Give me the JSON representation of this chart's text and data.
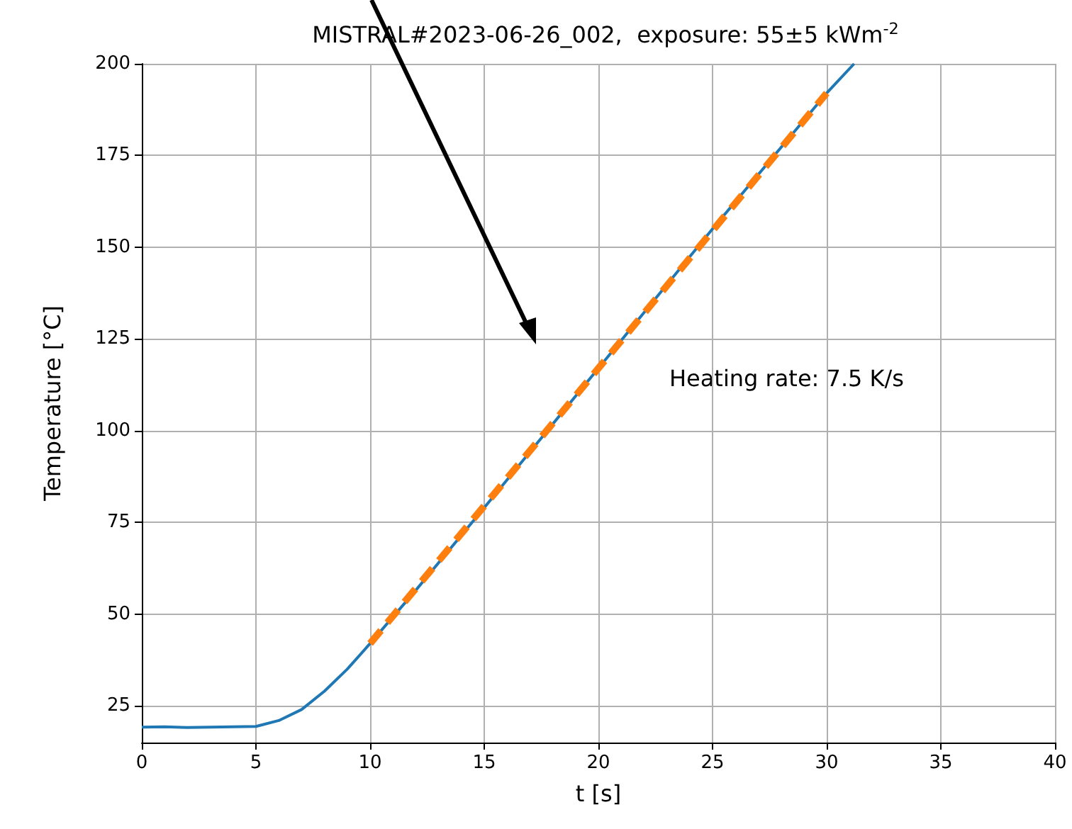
{
  "chart_data": {
    "type": "line",
    "title": "MISTRAL#2023-06-26_002,  exposure: 55±5 kWm$^{-2}$",
    "xlabel": "t [s]",
    "ylabel": "Temperature [°C]",
    "series": [
      {
        "color": "#1f77b4",
        "line_style": "solid",
        "x": [
          0,
          1,
          2,
          3,
          4,
          5,
          6,
          7,
          8,
          9,
          10,
          12,
          15,
          20,
          25,
          30,
          31.2
        ],
        "values": [
          19.2,
          19.3,
          19.1,
          19.2,
          19.3,
          19.4,
          21,
          24,
          29,
          35,
          42,
          56.5,
          79,
          117,
          155,
          192,
          200
        ]
      },
      {
        "color": "#ff7f0e",
        "line_style": "dashed",
        "x": [
          10,
          30
        ],
        "values": [
          42,
          192
        ]
      }
    ],
    "annotations": [
      "Heating rate: 7.5 K/s"
    ],
    "xlim": [
      0,
      40
    ],
    "ylim": [
      15,
      200
    ],
    "xticks": [
      0,
      5,
      10,
      15,
      20,
      25,
      30,
      35,
      40
    ],
    "yticks": [
      25,
      50,
      75,
      100,
      125,
      150,
      175,
      200
    ],
    "grid": true,
    "marker": "none"
  }
}
